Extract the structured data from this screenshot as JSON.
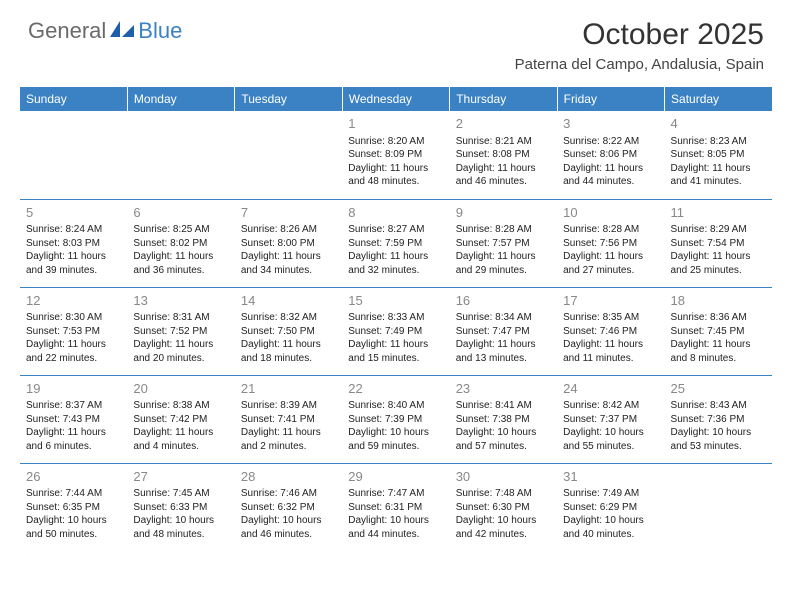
{
  "logo": {
    "text_general": "General",
    "text_blue": "Blue",
    "icon_color": "#1f5fa8"
  },
  "header": {
    "month_title": "October 2025",
    "location": "Paterna del Campo, Andalusia, Spain"
  },
  "colors": {
    "header_bg": "#3b82c4",
    "header_text": "#ffffff",
    "cell_border": "#3b82c4",
    "daynum": "#888888",
    "body_text": "#222222"
  },
  "typography": {
    "month_title_fontsize": 30,
    "location_fontsize": 15,
    "dayheader_fontsize": 12,
    "daynum_fontsize": 13,
    "cell_fontsize": 10
  },
  "day_headers": [
    "Sunday",
    "Monday",
    "Tuesday",
    "Wednesday",
    "Thursday",
    "Friday",
    "Saturday"
  ],
  "weeks": [
    [
      {
        "empty": true
      },
      {
        "empty": true
      },
      {
        "empty": true
      },
      {
        "day": "1",
        "sunrise": "Sunrise: 8:20 AM",
        "sunset": "Sunset: 8:09 PM",
        "daylight1": "Daylight: 11 hours",
        "daylight2": "and 48 minutes."
      },
      {
        "day": "2",
        "sunrise": "Sunrise: 8:21 AM",
        "sunset": "Sunset: 8:08 PM",
        "daylight1": "Daylight: 11 hours",
        "daylight2": "and 46 minutes."
      },
      {
        "day": "3",
        "sunrise": "Sunrise: 8:22 AM",
        "sunset": "Sunset: 8:06 PM",
        "daylight1": "Daylight: 11 hours",
        "daylight2": "and 44 minutes."
      },
      {
        "day": "4",
        "sunrise": "Sunrise: 8:23 AM",
        "sunset": "Sunset: 8:05 PM",
        "daylight1": "Daylight: 11 hours",
        "daylight2": "and 41 minutes."
      }
    ],
    [
      {
        "day": "5",
        "sunrise": "Sunrise: 8:24 AM",
        "sunset": "Sunset: 8:03 PM",
        "daylight1": "Daylight: 11 hours",
        "daylight2": "and 39 minutes."
      },
      {
        "day": "6",
        "sunrise": "Sunrise: 8:25 AM",
        "sunset": "Sunset: 8:02 PM",
        "daylight1": "Daylight: 11 hours",
        "daylight2": "and 36 minutes."
      },
      {
        "day": "7",
        "sunrise": "Sunrise: 8:26 AM",
        "sunset": "Sunset: 8:00 PM",
        "daylight1": "Daylight: 11 hours",
        "daylight2": "and 34 minutes."
      },
      {
        "day": "8",
        "sunrise": "Sunrise: 8:27 AM",
        "sunset": "Sunset: 7:59 PM",
        "daylight1": "Daylight: 11 hours",
        "daylight2": "and 32 minutes."
      },
      {
        "day": "9",
        "sunrise": "Sunrise: 8:28 AM",
        "sunset": "Sunset: 7:57 PM",
        "daylight1": "Daylight: 11 hours",
        "daylight2": "and 29 minutes."
      },
      {
        "day": "10",
        "sunrise": "Sunrise: 8:28 AM",
        "sunset": "Sunset: 7:56 PM",
        "daylight1": "Daylight: 11 hours",
        "daylight2": "and 27 minutes."
      },
      {
        "day": "11",
        "sunrise": "Sunrise: 8:29 AM",
        "sunset": "Sunset: 7:54 PM",
        "daylight1": "Daylight: 11 hours",
        "daylight2": "and 25 minutes."
      }
    ],
    [
      {
        "day": "12",
        "sunrise": "Sunrise: 8:30 AM",
        "sunset": "Sunset: 7:53 PM",
        "daylight1": "Daylight: 11 hours",
        "daylight2": "and 22 minutes."
      },
      {
        "day": "13",
        "sunrise": "Sunrise: 8:31 AM",
        "sunset": "Sunset: 7:52 PM",
        "daylight1": "Daylight: 11 hours",
        "daylight2": "and 20 minutes."
      },
      {
        "day": "14",
        "sunrise": "Sunrise: 8:32 AM",
        "sunset": "Sunset: 7:50 PM",
        "daylight1": "Daylight: 11 hours",
        "daylight2": "and 18 minutes."
      },
      {
        "day": "15",
        "sunrise": "Sunrise: 8:33 AM",
        "sunset": "Sunset: 7:49 PM",
        "daylight1": "Daylight: 11 hours",
        "daylight2": "and 15 minutes."
      },
      {
        "day": "16",
        "sunrise": "Sunrise: 8:34 AM",
        "sunset": "Sunset: 7:47 PM",
        "daylight1": "Daylight: 11 hours",
        "daylight2": "and 13 minutes."
      },
      {
        "day": "17",
        "sunrise": "Sunrise: 8:35 AM",
        "sunset": "Sunset: 7:46 PM",
        "daylight1": "Daylight: 11 hours",
        "daylight2": "and 11 minutes."
      },
      {
        "day": "18",
        "sunrise": "Sunrise: 8:36 AM",
        "sunset": "Sunset: 7:45 PM",
        "daylight1": "Daylight: 11 hours",
        "daylight2": "and 8 minutes."
      }
    ],
    [
      {
        "day": "19",
        "sunrise": "Sunrise: 8:37 AM",
        "sunset": "Sunset: 7:43 PM",
        "daylight1": "Daylight: 11 hours",
        "daylight2": "and 6 minutes."
      },
      {
        "day": "20",
        "sunrise": "Sunrise: 8:38 AM",
        "sunset": "Sunset: 7:42 PM",
        "daylight1": "Daylight: 11 hours",
        "daylight2": "and 4 minutes."
      },
      {
        "day": "21",
        "sunrise": "Sunrise: 8:39 AM",
        "sunset": "Sunset: 7:41 PM",
        "daylight1": "Daylight: 11 hours",
        "daylight2": "and 2 minutes."
      },
      {
        "day": "22",
        "sunrise": "Sunrise: 8:40 AM",
        "sunset": "Sunset: 7:39 PM",
        "daylight1": "Daylight: 10 hours",
        "daylight2": "and 59 minutes."
      },
      {
        "day": "23",
        "sunrise": "Sunrise: 8:41 AM",
        "sunset": "Sunset: 7:38 PM",
        "daylight1": "Daylight: 10 hours",
        "daylight2": "and 57 minutes."
      },
      {
        "day": "24",
        "sunrise": "Sunrise: 8:42 AM",
        "sunset": "Sunset: 7:37 PM",
        "daylight1": "Daylight: 10 hours",
        "daylight2": "and 55 minutes."
      },
      {
        "day": "25",
        "sunrise": "Sunrise: 8:43 AM",
        "sunset": "Sunset: 7:36 PM",
        "daylight1": "Daylight: 10 hours",
        "daylight2": "and 53 minutes."
      }
    ],
    [
      {
        "day": "26",
        "sunrise": "Sunrise: 7:44 AM",
        "sunset": "Sunset: 6:35 PM",
        "daylight1": "Daylight: 10 hours",
        "daylight2": "and 50 minutes."
      },
      {
        "day": "27",
        "sunrise": "Sunrise: 7:45 AM",
        "sunset": "Sunset: 6:33 PM",
        "daylight1": "Daylight: 10 hours",
        "daylight2": "and 48 minutes."
      },
      {
        "day": "28",
        "sunrise": "Sunrise: 7:46 AM",
        "sunset": "Sunset: 6:32 PM",
        "daylight1": "Daylight: 10 hours",
        "daylight2": "and 46 minutes."
      },
      {
        "day": "29",
        "sunrise": "Sunrise: 7:47 AM",
        "sunset": "Sunset: 6:31 PM",
        "daylight1": "Daylight: 10 hours",
        "daylight2": "and 44 minutes."
      },
      {
        "day": "30",
        "sunrise": "Sunrise: 7:48 AM",
        "sunset": "Sunset: 6:30 PM",
        "daylight1": "Daylight: 10 hours",
        "daylight2": "and 42 minutes."
      },
      {
        "day": "31",
        "sunrise": "Sunrise: 7:49 AM",
        "sunset": "Sunset: 6:29 PM",
        "daylight1": "Daylight: 10 hours",
        "daylight2": "and 40 minutes."
      },
      {
        "empty": true
      }
    ]
  ]
}
